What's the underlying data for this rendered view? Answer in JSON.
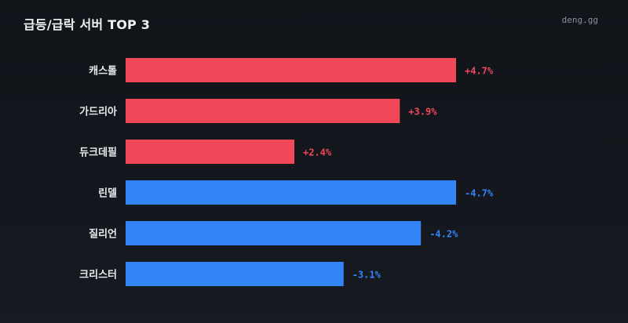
{
  "header": {
    "title": "급등/급락 서버 TOP 3",
    "brand": "deng.gg"
  },
  "colors": {
    "up": "#f04858",
    "down": "#3384f6"
  },
  "chart_data": {
    "type": "bar",
    "orientation": "horizontal",
    "title": "급등/급락 서버 TOP 3",
    "categories": [
      "캐스톨",
      "가드리아",
      "듀크데필",
      "린델",
      "질리언",
      "크리스터"
    ],
    "values": [
      4.7,
      3.9,
      2.4,
      -4.7,
      -4.2,
      -3.1
    ],
    "value_labels": [
      "+4.7%",
      "+3.9%",
      "+2.4%",
      "-4.7%",
      "-4.2%",
      "-3.1%"
    ],
    "groups": [
      "up",
      "up",
      "up",
      "down",
      "down",
      "down"
    ],
    "xlim": [
      0,
      4.7
    ],
    "grid": false,
    "legend": "none"
  }
}
